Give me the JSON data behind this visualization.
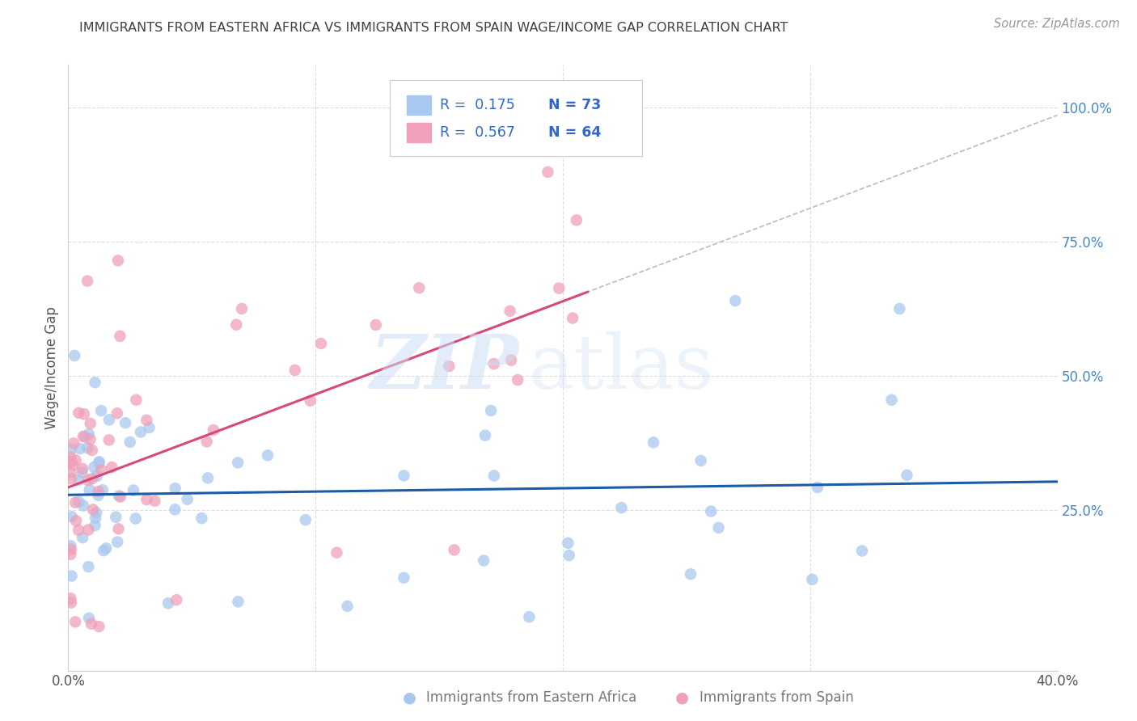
{
  "title": "IMMIGRANTS FROM EASTERN AFRICA VS IMMIGRANTS FROM SPAIN WAGE/INCOME GAP CORRELATION CHART",
  "source": "Source: ZipAtlas.com",
  "xlabel_left": "Immigrants from Eastern Africa",
  "xlabel_right": "Immigrants from Spain",
  "ylabel": "Wage/Income Gap",
  "xlim": [
    0.0,
    0.4
  ],
  "ylim": [
    -0.05,
    1.08
  ],
  "yticks_right": [
    0.25,
    0.5,
    0.75,
    1.0
  ],
  "ytick_labels_right": [
    "25.0%",
    "50.0%",
    "75.0%",
    "100.0%"
  ],
  "series1_color": "#a8c8f0",
  "series2_color": "#f0a0b8",
  "series1_line_color": "#1a5ca8",
  "series2_line_color": "#d84878",
  "series1_label": "Immigrants from Eastern Africa",
  "series2_label": "Immigrants from Spain",
  "R1": 0.175,
  "N1": 73,
  "R2": 0.567,
  "N2": 64,
  "legend_text_color": "#3366cc",
  "title_color": "#404040",
  "watermark_zip": "ZIP",
  "watermark_atlas": "atlas",
  "background_color": "#ffffff",
  "grid_color": "#dddddd",
  "dashed_ext_color": "#bbbbbb"
}
